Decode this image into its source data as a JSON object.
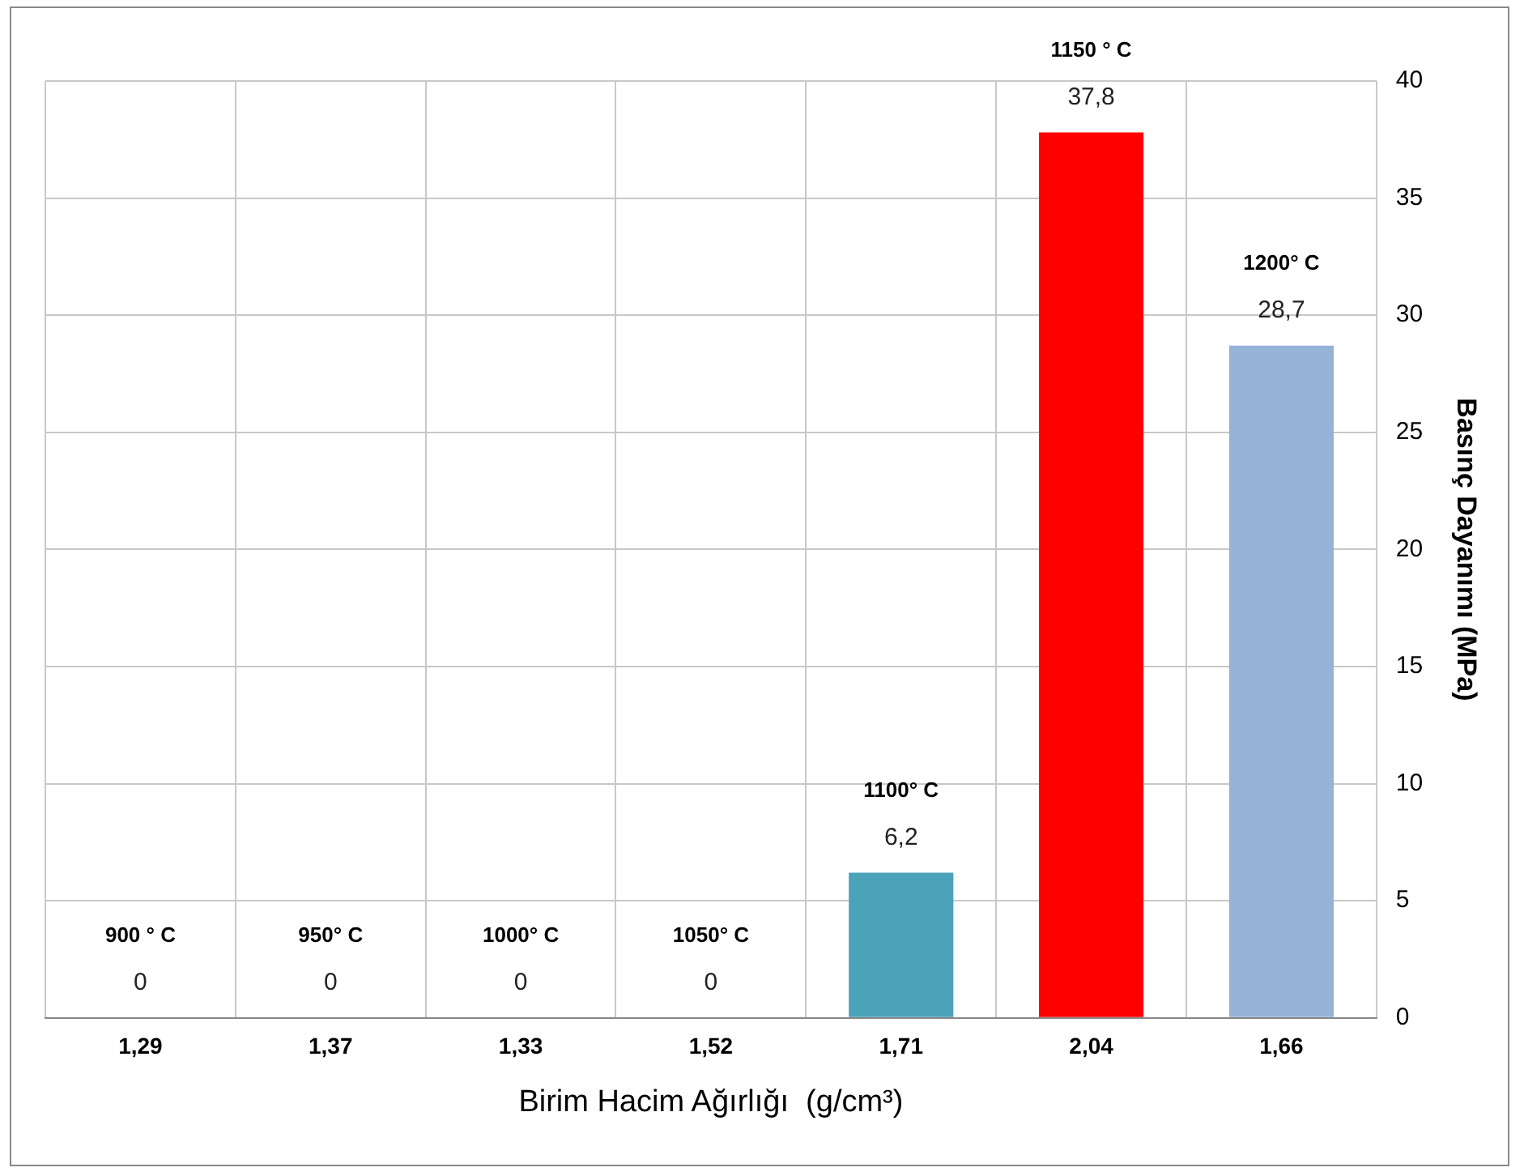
{
  "chart_data": {
    "type": "bar",
    "xlabel": "Birim Hacim Ağırlığı  (g/cm³)",
    "ylabel": "Basınç Dayanımı (MPa)",
    "categories": [
      "1,29",
      "1,37",
      "1,33",
      "1,52",
      "1,71",
      "2,04",
      "1,66"
    ],
    "values": [
      0,
      0,
      0,
      0,
      6.2,
      37.8,
      28.7
    ],
    "colors": [
      "#4bacc6",
      "#4bacc6",
      "#4bacc6",
      "#4bacc6",
      "#4aa3b8",
      "#ff0000",
      "#95b3d7"
    ],
    "value_labels": [
      "0",
      "0",
      "0",
      "0",
      "6,2",
      "37,8",
      "28,7"
    ],
    "annotations": [
      "900 ° C",
      "950° C",
      "1000° C",
      "1050° C",
      "1100° C",
      "1150 ° C",
      "1200° C"
    ],
    "ylim": [
      0,
      40
    ],
    "yticks": [
      0,
      5,
      10,
      15,
      20,
      25,
      30,
      35,
      40
    ],
    "grid": true,
    "legend": false
  }
}
